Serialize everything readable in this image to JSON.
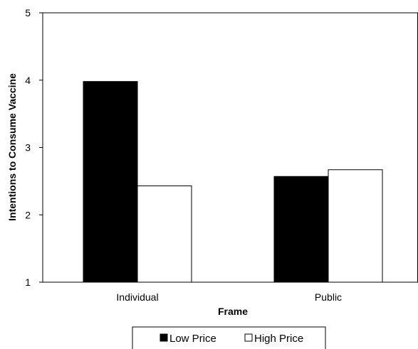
{
  "chart_data": {
    "type": "bar",
    "categories": [
      "Individual",
      "Public"
    ],
    "series": [
      {
        "name": "Low Price",
        "values": [
          3.98,
          2.57
        ],
        "color": "#000000"
      },
      {
        "name": "High Price",
        "values": [
          2.43,
          2.67
        ],
        "color": "#ffffff"
      }
    ],
    "xlabel": "Frame",
    "ylabel": "Intentions to Consume Vaccine",
    "ylim": [
      1,
      5
    ],
    "yticks": [
      "1",
      "2",
      "3",
      "4",
      "5"
    ],
    "grid": false,
    "legend": "bottom"
  }
}
